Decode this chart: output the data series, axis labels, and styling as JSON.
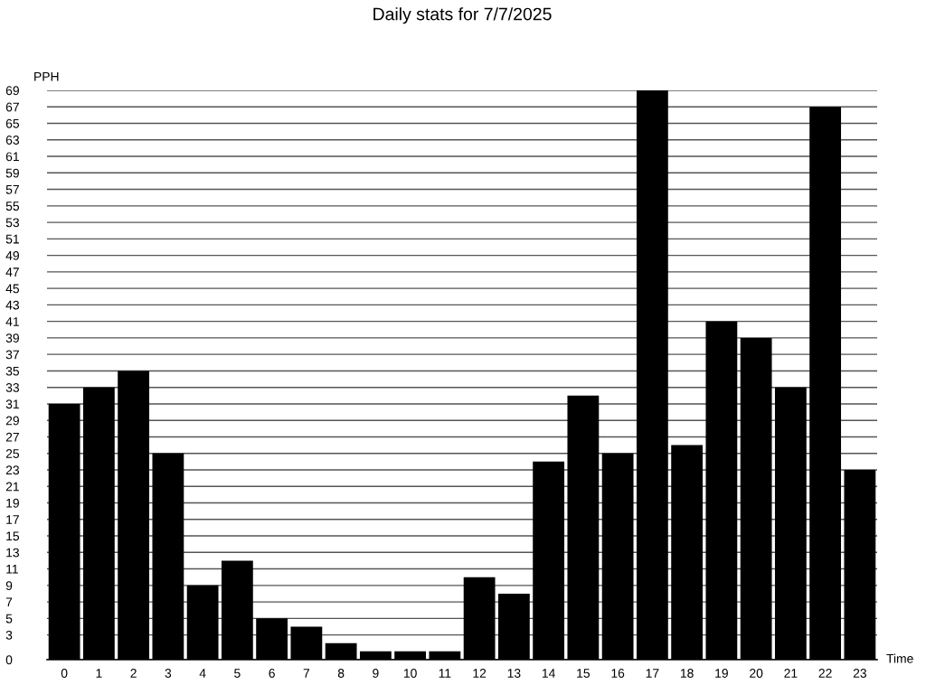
{
  "chart_data": {
    "type": "bar",
    "title": "Daily stats for 7/7/2025",
    "xlabel": "Time",
    "ylabel": "PPH",
    "categories": [
      "0",
      "1",
      "2",
      "3",
      "4",
      "5",
      "6",
      "7",
      "8",
      "9",
      "10",
      "11",
      "12",
      "13",
      "14",
      "15",
      "16",
      "17",
      "18",
      "19",
      "20",
      "21",
      "22",
      "23"
    ],
    "values": [
      31,
      33,
      35,
      25,
      9,
      12,
      5,
      4,
      2,
      1,
      1,
      1,
      10,
      8,
      24,
      32,
      25,
      69,
      26,
      41,
      39,
      33,
      67,
      23
    ],
    "color": "#000000",
    "ylim": [
      0,
      69
    ],
    "yticks": [
      0,
      3,
      5,
      7,
      9,
      11,
      13,
      15,
      17,
      19,
      21,
      23,
      25,
      27,
      29,
      31,
      33,
      35,
      37,
      39,
      41,
      43,
      45,
      47,
      49,
      51,
      53,
      55,
      57,
      59,
      61,
      63,
      65,
      67,
      69
    ],
    "grid": "y",
    "legend": false
  }
}
